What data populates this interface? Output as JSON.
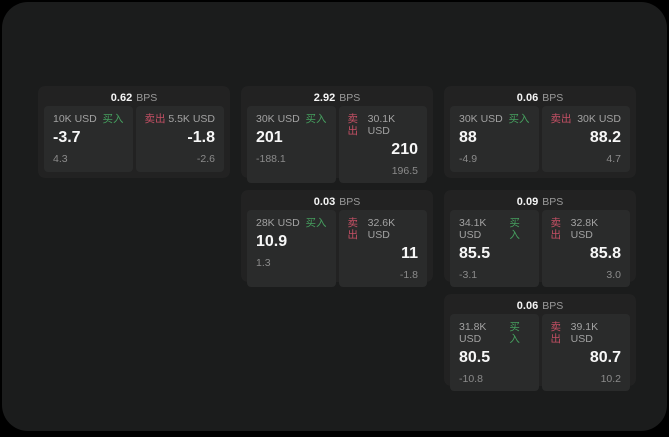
{
  "labels": {
    "bps_unit": "BPS",
    "buy": "买入",
    "sell": "卖出"
  },
  "colors": {
    "buy_green": "#46a05f",
    "sell_red": "#c55065",
    "page_background": "#1b1c1c",
    "card_background": "#222222",
    "panel_background": "#2a2b2b"
  },
  "cards": [
    {
      "bps": "0.62",
      "buy": {
        "amount": "10K USD",
        "price": "-3.7",
        "delta": "4.3"
      },
      "sell": {
        "amount": "5.5K USD",
        "price": "-1.8",
        "delta": "-2.6"
      }
    },
    {
      "bps": "2.92",
      "buy": {
        "amount": "30K USD",
        "price": "201",
        "delta": "-188.1"
      },
      "sell": {
        "amount": "30.1K USD",
        "price": "210",
        "delta": "196.5"
      }
    },
    {
      "bps": "0.06",
      "buy": {
        "amount": "30K USD",
        "price": "88",
        "delta": "-4.9"
      },
      "sell": {
        "amount": "30K USD",
        "price": "88.2",
        "delta": "4.7"
      }
    },
    {
      "bps": "0.03",
      "buy": {
        "amount": "28K USD",
        "price": "10.9",
        "delta": "1.3"
      },
      "sell": {
        "amount": "32.6K USD",
        "price": "11",
        "delta": "-1.8"
      }
    },
    {
      "bps": "0.09",
      "buy": {
        "amount": "34.1K USD",
        "price": "85.5",
        "delta": "-3.1"
      },
      "sell": {
        "amount": "32.8K USD",
        "price": "85.8",
        "delta": "3.0"
      }
    },
    {
      "bps": "0.06",
      "buy": {
        "amount": "31.8K USD",
        "price": "80.5",
        "delta": "-10.8"
      },
      "sell": {
        "amount": "39.1K USD",
        "price": "80.7",
        "delta": "10.2"
      }
    }
  ]
}
